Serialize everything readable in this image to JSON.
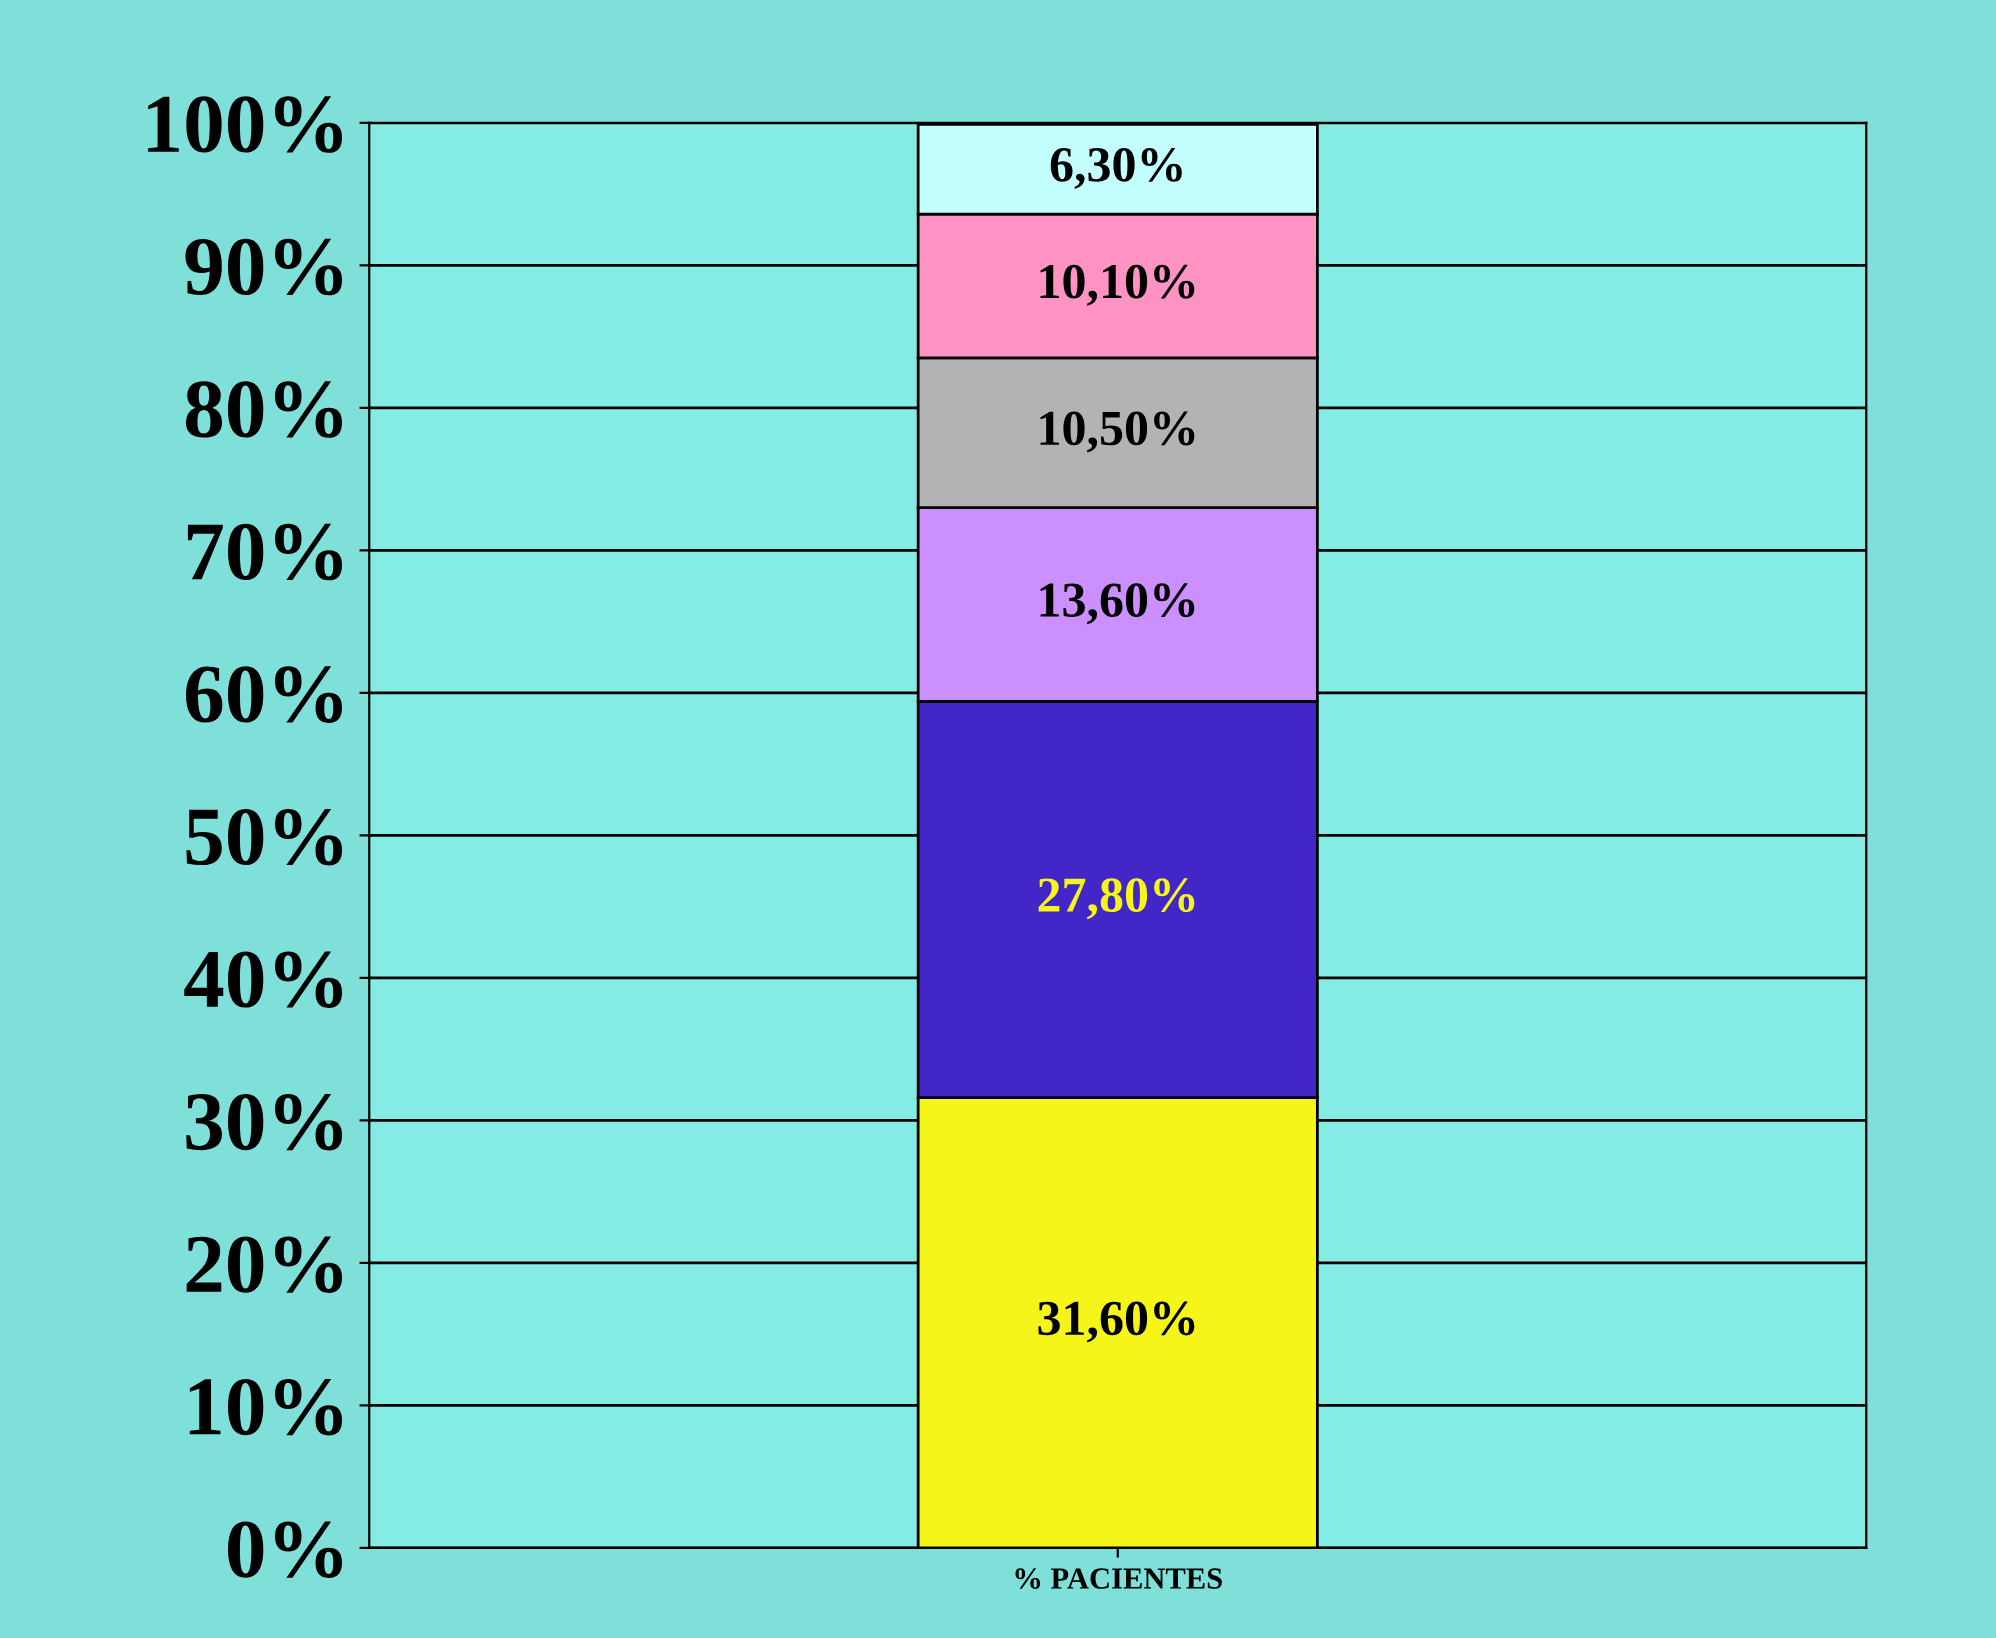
{
  "chart_data": {
    "type": "bar",
    "stacked": true,
    "categories": [
      "% PACIENTES"
    ],
    "series": [
      {
        "color": "#f5f51a",
        "values": [
          31.6
        ],
        "value_labels": [
          "31,60%"
        ]
      },
      {
        "color": "#4226c8",
        "values": [
          27.8
        ],
        "value_labels": [
          "27,80%"
        ]
      },
      {
        "color": "#cc8fff",
        "values": [
          13.6
        ],
        "value_labels": [
          "13,60%"
        ]
      },
      {
        "color": "#b3b3b3",
        "values": [
          10.5
        ],
        "value_labels": [
          "10,50%"
        ]
      },
      {
        "color": "#ff93c4",
        "values": [
          10.1
        ],
        "value_labels": [
          "10,10%"
        ]
      },
      {
        "color": "#c4ffff",
        "values": [
          6.3
        ],
        "value_labels": [
          "6,30%"
        ]
      }
    ],
    "ylim": [
      0,
      100
    ],
    "yticks": [
      {
        "value": 0,
        "label": "0%"
      },
      {
        "value": 10,
        "label": "10%"
      },
      {
        "value": 20,
        "label": "20%"
      },
      {
        "value": 30,
        "label": "30%"
      },
      {
        "value": 40,
        "label": "40%"
      },
      {
        "value": 50,
        "label": "50%"
      },
      {
        "value": 60,
        "label": "60%"
      },
      {
        "value": 70,
        "label": "70%"
      },
      {
        "value": 80,
        "label": "80%"
      },
      {
        "value": 90,
        "label": "90%"
      },
      {
        "value": 100,
        "label": "100%"
      }
    ],
    "grid": "y",
    "legend": false
  }
}
